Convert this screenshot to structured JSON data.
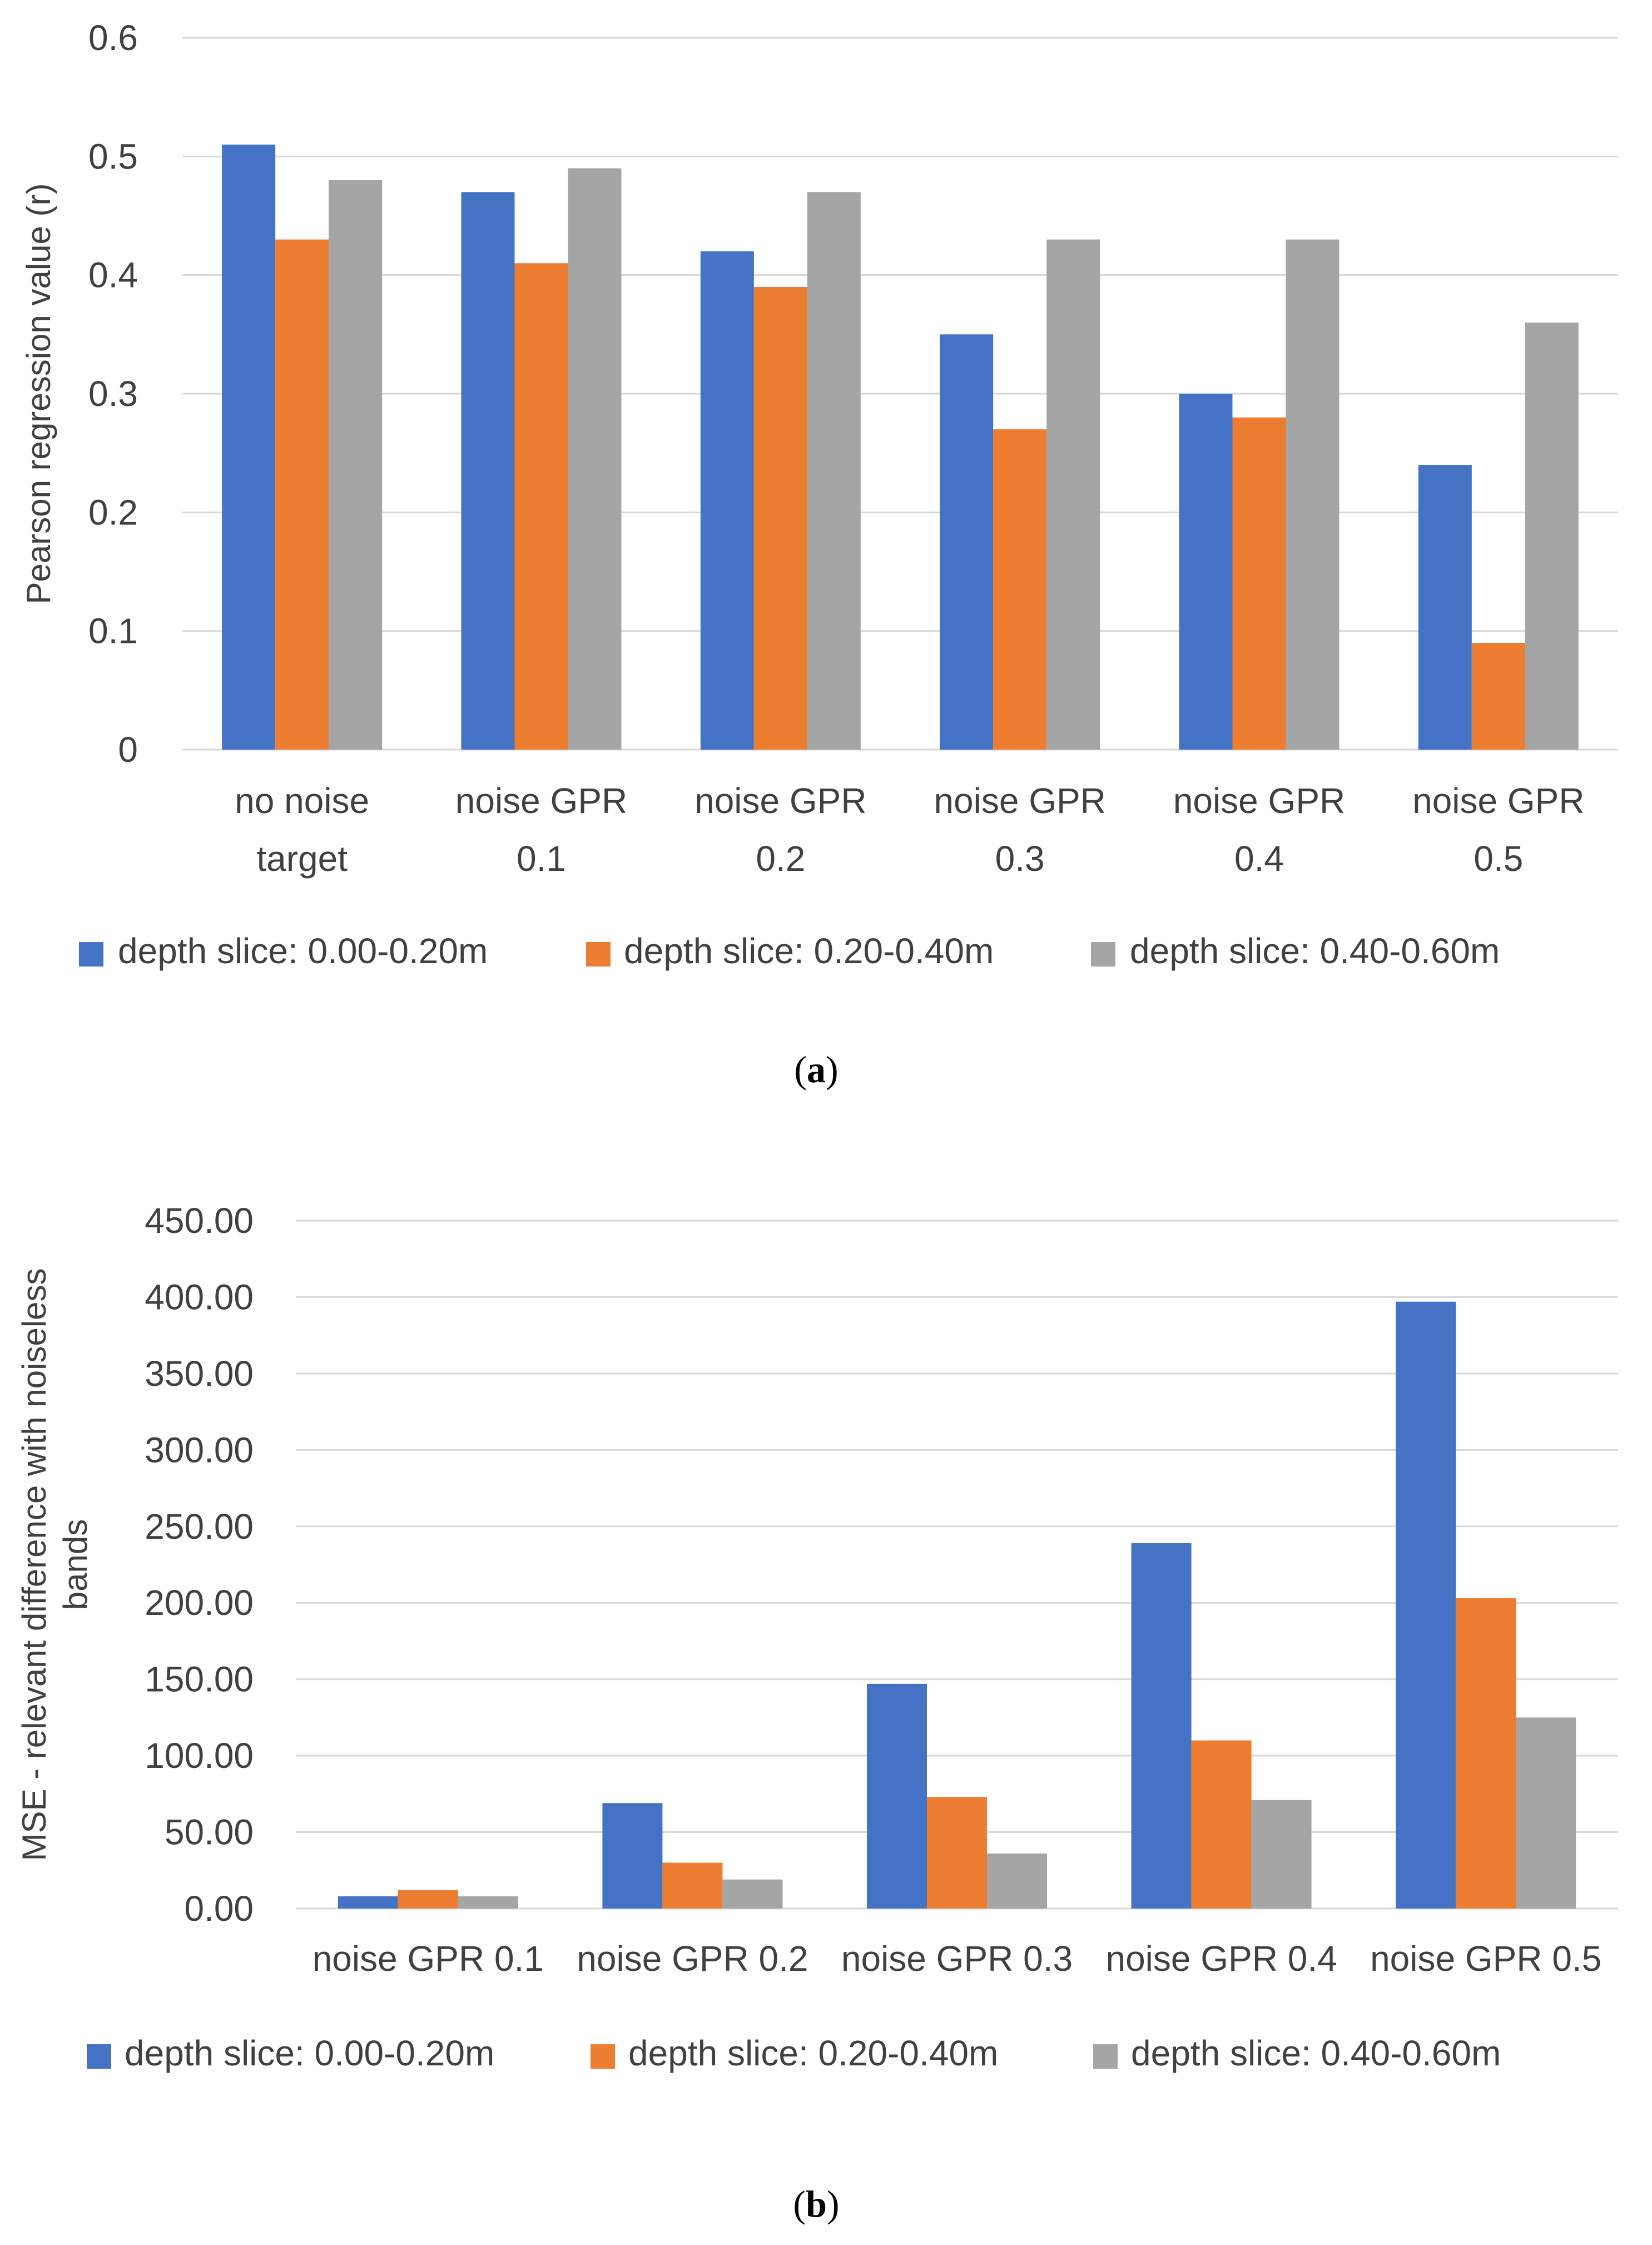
{
  "colors": {
    "series": [
      "#4472C4",
      "#ED7D31",
      "#A5A5A5"
    ],
    "grid": "#D9D9D9",
    "text": "#404040"
  },
  "chart_data": [
    {
      "type": "bar",
      "caption_letter": "a",
      "categories": [
        [
          "no noise",
          "target"
        ],
        [
          "noise GPR",
          "0.1"
        ],
        [
          "noise GPR",
          "0.2"
        ],
        [
          "noise GPR",
          "0.3"
        ],
        [
          "noise GPR",
          "0.4"
        ],
        [
          "noise GPR",
          "0.5"
        ]
      ],
      "series": [
        {
          "name": "depth slice: 0.00-0.20m",
          "values": [
            0.51,
            0.47,
            0.42,
            0.35,
            0.3,
            0.24
          ]
        },
        {
          "name": "depth slice: 0.20-0.40m",
          "values": [
            0.43,
            0.41,
            0.39,
            0.27,
            0.28,
            0.09
          ]
        },
        {
          "name": "depth slice: 0.40-0.60m",
          "values": [
            0.48,
            0.49,
            0.47,
            0.43,
            0.43,
            0.36
          ]
        }
      ],
      "ylabel": [
        "Pearson regression value (r)"
      ],
      "ylim": [
        0,
        0.6
      ],
      "yticks": [
        "0",
        "0.1",
        "0.2",
        "0.3",
        "0.4",
        "0.5",
        "0.6"
      ],
      "grid": true,
      "legend": "bottom"
    },
    {
      "type": "bar",
      "caption_letter": "b",
      "categories": [
        [
          "noise GPR 0.1"
        ],
        [
          "noise GPR 0.2"
        ],
        [
          "noise GPR 0.3"
        ],
        [
          "noise GPR 0.4"
        ],
        [
          "noise GPR 0.5"
        ]
      ],
      "series": [
        {
          "name": "depth slice: 0.00-0.20m",
          "values": [
            8,
            69,
            147,
            239,
            397
          ]
        },
        {
          "name": "depth slice: 0.20-0.40m",
          "values": [
            12,
            30,
            73,
            110,
            203
          ]
        },
        {
          "name": "depth slice: 0.40-0.60m",
          "values": [
            8,
            19,
            36,
            71,
            125
          ]
        }
      ],
      "ylabel": [
        "MSE - relevant difference with noiseless",
        "bands"
      ],
      "ylim": [
        0,
        450
      ],
      "yticks": [
        "0.00",
        "50.00",
        "100.00",
        "150.00",
        "200.00",
        "250.00",
        "300.00",
        "350.00",
        "400.00",
        "450.00"
      ],
      "grid": true,
      "legend": "bottom"
    }
  ]
}
